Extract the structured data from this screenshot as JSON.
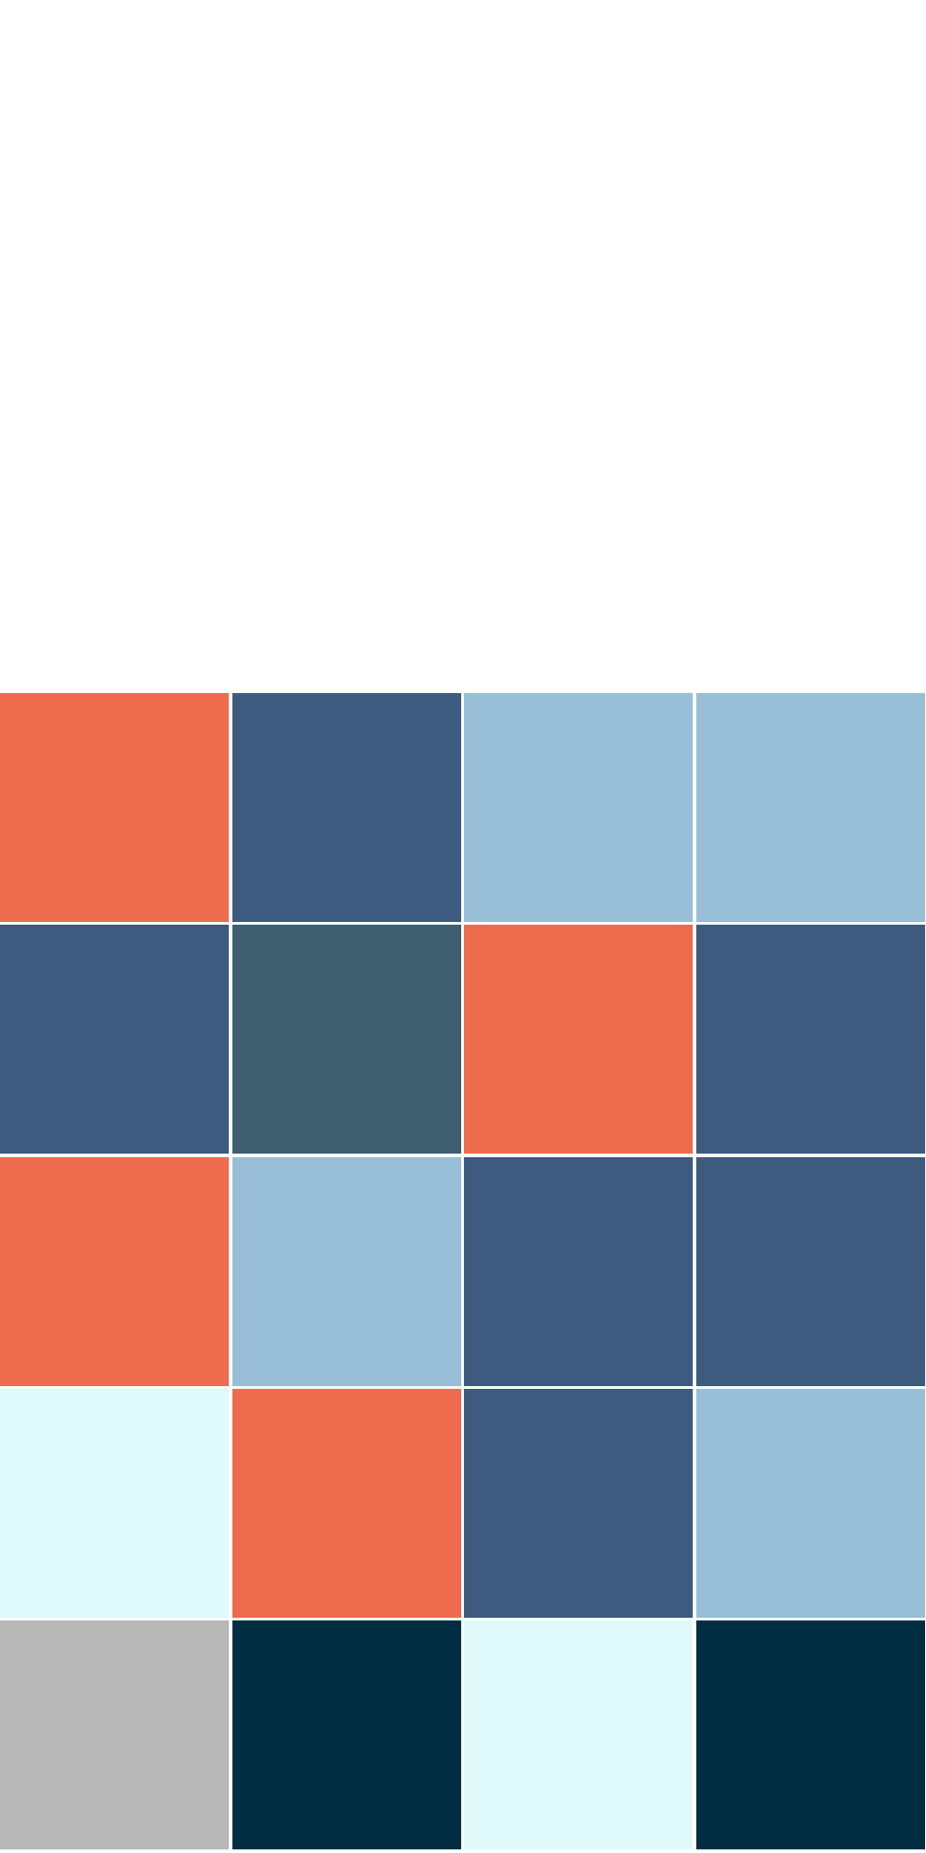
{
  "board": {
    "rows": [
      [
        {
          "color": "#ef6b4e"
        },
        {
          "color": "#3d5a7f"
        },
        {
          "color": "#98bfd7"
        },
        {
          "color": "#98bfd7"
        }
      ],
      [
        {
          "color": "#3d5a7f"
        },
        {
          "color": "#3d5f70"
        },
        {
          "color": "#ef6b4e"
        },
        {
          "color": "#3d5a7f"
        }
      ],
      [
        {
          "color": "#ef6b4e"
        },
        {
          "color": "#98bfd7"
        },
        {
          "color": "#3d5a7f"
        },
        {
          "color": "#3d5a7f"
        }
      ],
      [
        {
          "color": "#e0f9fb"
        },
        {
          "color": "#ef6b4e"
        },
        {
          "color": "#3d5a7f"
        },
        {
          "color": "#98bfd7"
        }
      ],
      [
        {
          "color": "#b8b8b8"
        },
        {
          "color": "#022e44"
        },
        {
          "color": "#e0f9fb"
        },
        {
          "color": "#022e44"
        }
      ]
    ]
  }
}
